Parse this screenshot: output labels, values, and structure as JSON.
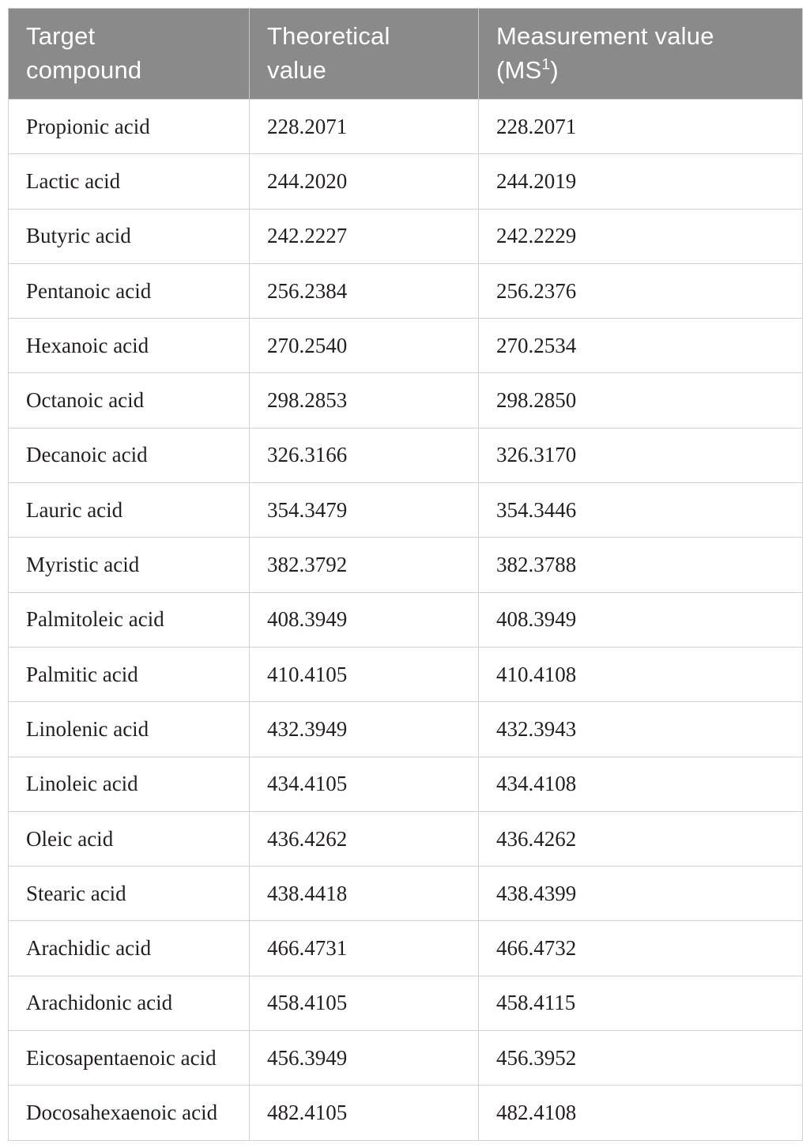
{
  "table": {
    "header": {
      "target": "Target compound",
      "theoretical": "Theoretical value",
      "measurement_prefix": "Measurement value (MS",
      "measurement_sup": "1",
      "measurement_suffix": ")"
    },
    "rows": [
      {
        "compound": "Propionic acid",
        "theoretical": "228.2071",
        "measurement": "228.2071"
      },
      {
        "compound": "Lactic acid",
        "theoretical": "244.2020",
        "measurement": "244.2019"
      },
      {
        "compound": "Butyric acid",
        "theoretical": "242.2227",
        "measurement": "242.2229"
      },
      {
        "compound": "Pentanoic acid",
        "theoretical": "256.2384",
        "measurement": "256.2376"
      },
      {
        "compound": "Hexanoic acid",
        "theoretical": "270.2540",
        "measurement": "270.2534"
      },
      {
        "compound": "Octanoic acid",
        "theoretical": "298.2853",
        "measurement": "298.2850"
      },
      {
        "compound": "Decanoic acid",
        "theoretical": "326.3166",
        "measurement": "326.3170"
      },
      {
        "compound": "Lauric acid",
        "theoretical": "354.3479",
        "measurement": "354.3446"
      },
      {
        "compound": "Myristic acid",
        "theoretical": "382.3792",
        "measurement": "382.3788"
      },
      {
        "compound": "Palmitoleic acid",
        "theoretical": "408.3949",
        "measurement": "408.3949"
      },
      {
        "compound": "Palmitic acid",
        "theoretical": "410.4105",
        "measurement": "410.4108"
      },
      {
        "compound": "Linolenic acid",
        "theoretical": "432.3949",
        "measurement": "432.3943"
      },
      {
        "compound": "Linoleic acid",
        "theoretical": "434.4105",
        "measurement": "434.4108"
      },
      {
        "compound": "Oleic acid",
        "theoretical": "436.4262",
        "measurement": "436.4262"
      },
      {
        "compound": "Stearic acid",
        "theoretical": "438.4418",
        "measurement": "438.4399"
      },
      {
        "compound": "Arachidic acid",
        "theoretical": "466.4731",
        "measurement": "466.4732"
      },
      {
        "compound": "Arachidonic acid",
        "theoretical": "458.4105",
        "measurement": "458.4115"
      },
      {
        "compound": "Eicosapentaenoic acid",
        "theoretical": "456.3949",
        "measurement": "456.3952"
      },
      {
        "compound": "Docosahexaenoic acid",
        "theoretical": "482.4105",
        "measurement": "482.4108"
      }
    ]
  },
  "colors": {
    "header_bg": "#8a8a8a",
    "header_text": "#ffffff",
    "body_text": "#231f20",
    "border": "#d2d2d2",
    "row_bg": "#ffffff"
  }
}
